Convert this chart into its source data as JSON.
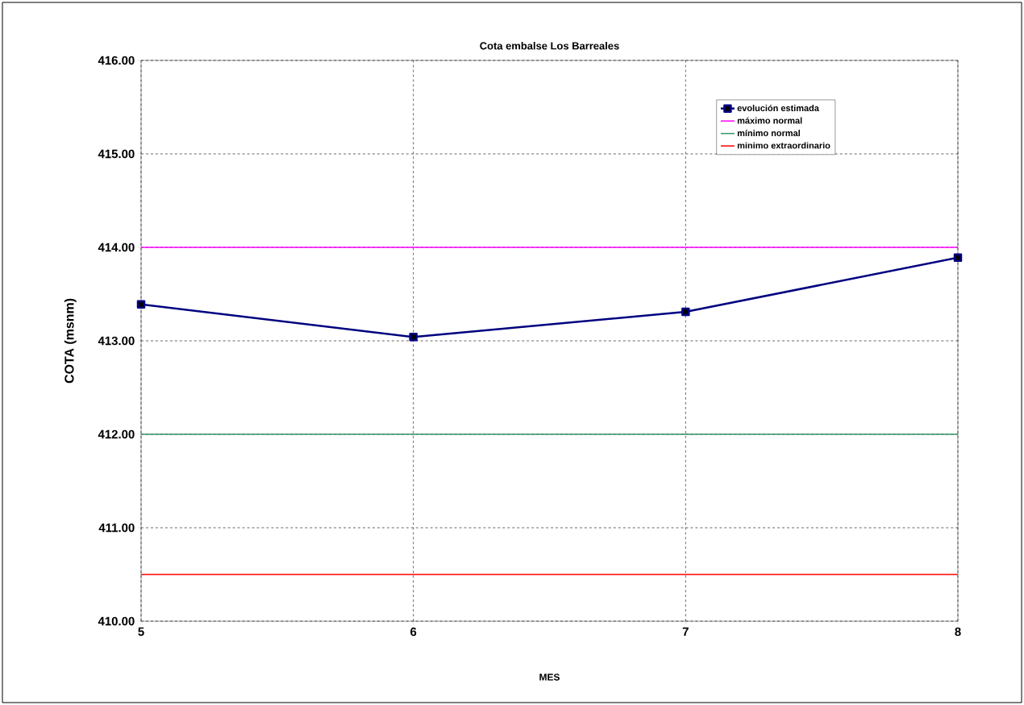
{
  "chart_data": {
    "type": "line",
    "title": "Cota embalse Los Barreales",
    "xlabel": "MES",
    "ylabel": "COTA (msnm)",
    "x": [
      5,
      6,
      7,
      8
    ],
    "series": [
      {
        "name": "evolución estimada",
        "color": "#000080",
        "values": [
          413.39,
          413.04,
          413.31,
          413.89
        ]
      }
    ],
    "ref_lines": [
      {
        "axis": "y",
        "value": 414,
        "label": "máximo normal",
        "color": "#ff00ff"
      },
      {
        "axis": "y",
        "value": 412,
        "label": "mínimo normal",
        "color": "#339966"
      },
      {
        "axis": "y",
        "value": 410.5,
        "label": "minimo extraordinario",
        "color": "#ff0000"
      }
    ],
    "xlim": [
      5,
      8
    ],
    "xticks": [
      5,
      6,
      7,
      8
    ],
    "ylim": [
      410,
      416
    ],
    "yticks": [
      {
        "value": 410,
        "label": "410.00"
      },
      {
        "value": 411,
        "label": "411.00"
      },
      {
        "value": 412,
        "label": "412.00"
      },
      {
        "value": 413,
        "label": "413.00"
      },
      {
        "value": 414,
        "label": "414.00"
      },
      {
        "value": 415,
        "label": "415.00"
      },
      {
        "value": 416,
        "label": "416.00"
      }
    ],
    "grid": true,
    "legend": "top right",
    "marker": "square",
    "line_style": "solid"
  }
}
